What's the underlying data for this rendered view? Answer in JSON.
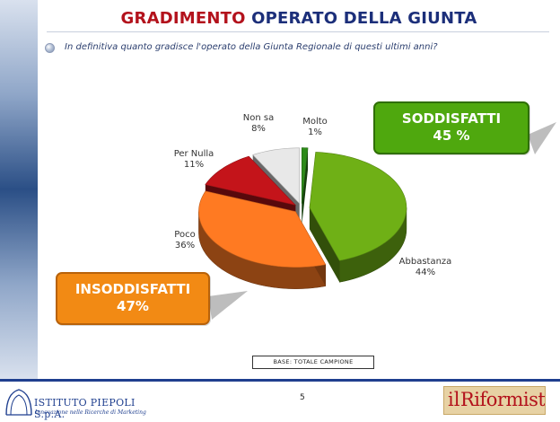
{
  "title": {
    "part1": "GRADIMENTO",
    "part2": "OPERATO DELLA GIUNTA"
  },
  "question": "In definitiva quanto gradisce l'operato della Giunta Regionale di questi ultimi anni?",
  "callouts": {
    "satisfied": {
      "label": "SODDISFATTI",
      "value": "45 %",
      "color": "#4fa80e"
    },
    "unsatisfied": {
      "label": "INSODDISFATTI",
      "value": "47%",
      "color": "#f28a14"
    }
  },
  "base_note": "BASE: TOTALE CAMPIONE",
  "page_number": "5",
  "logos": {
    "left": {
      "name": "ISTITUTO PIEPOLI S.p.A.",
      "tagline": "Innovazione nelle Ricerche di Marketing"
    },
    "right": {
      "prefix": "il",
      "name": "Riformista"
    }
  },
  "chart_data": {
    "type": "pie",
    "style": "3d-exploded",
    "title": "",
    "slices": [
      {
        "name": "Molto",
        "value": 1,
        "label": "1%",
        "color": "#2e8b1a"
      },
      {
        "name": "Abbastanza",
        "value": 44,
        "label": "44%",
        "color": "#6fb016"
      },
      {
        "name": "Poco",
        "value": 36,
        "label": "36%",
        "color": "#ff7a22"
      },
      {
        "name": "Per Nulla",
        "value": 11,
        "label": "11%",
        "color": "#c4141a"
      },
      {
        "name": "Non sa",
        "value": 8,
        "label": "8%",
        "color": "#e8e8e8"
      }
    ]
  }
}
